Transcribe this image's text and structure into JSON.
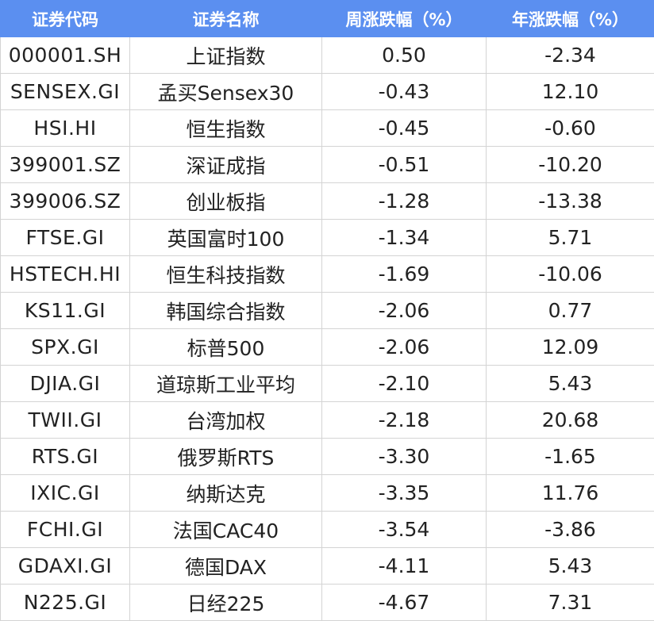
{
  "table": {
    "header": [
      "证券代码",
      "证券名称",
      "周涨跌幅（%）",
      "年涨跌幅（%）"
    ],
    "rows": [
      [
        "000001.SH",
        "上证指数",
        "0.50",
        "-2.34"
      ],
      [
        "SENSEX.GI",
        "孟买Sensex30",
        "-0.43",
        "12.10"
      ],
      [
        "HSI.HI",
        "恒生指数",
        "-0.45",
        "-0.60"
      ],
      [
        "399001.SZ",
        "深证成指",
        "-0.51",
        "-10.20"
      ],
      [
        "399006.SZ",
        "创业板指",
        "-1.28",
        "-13.38"
      ],
      [
        "FTSE.GI",
        "英国富时100",
        "-1.34",
        "5.71"
      ],
      [
        "HSTECH.HI",
        "恒生科技指数",
        "-1.69",
        "-10.06"
      ],
      [
        "KS11.GI",
        "韩国综合指数",
        "-2.06",
        "0.77"
      ],
      [
        "SPX.GI",
        "标普500",
        "-2.06",
        "12.09"
      ],
      [
        "DJIA.GI",
        "道琼斯工业平均",
        "-2.10",
        "5.43"
      ],
      [
        "TWII.GI",
        "台湾加权",
        "-2.18",
        "20.68"
      ],
      [
        "RTS.GI",
        "俄罗斯RTS",
        "-3.30",
        "-1.65"
      ],
      [
        "IXIC.GI",
        "纳斯达克",
        "-3.35",
        "11.76"
      ],
      [
        "FCHI.GI",
        "法国CAC40",
        "-3.54",
        "-3.86"
      ],
      [
        "GDAXI.GI",
        "德国DAX",
        "-4.11",
        "5.43"
      ],
      [
        "N225.GI",
        "日经225",
        "-4.67",
        "7.31"
      ]
    ]
  }
}
